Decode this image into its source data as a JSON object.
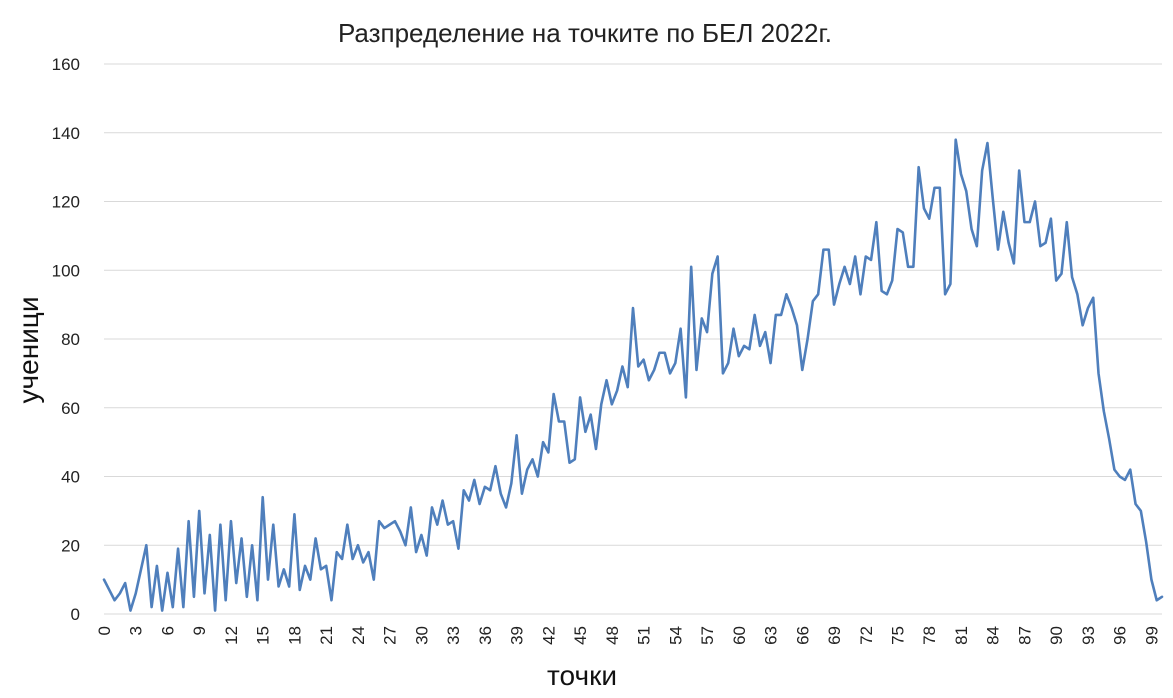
{
  "chart_data": {
    "type": "line",
    "title": "Разпределение на точките по БЕЛ 2022г.",
    "xlabel": "точки",
    "ylabel": "ученици",
    "ylim": [
      0,
      160
    ],
    "y_ticks": [
      "0",
      "20",
      "40",
      "60",
      "80",
      "100",
      "120",
      "140",
      "160"
    ],
    "x_ticks": [
      "0",
      "3",
      "6",
      "9",
      "12",
      "15",
      "18",
      "21",
      "24",
      "27",
      "30",
      "33",
      "36",
      "39",
      "42",
      "45",
      "48",
      "51",
      "54",
      "57",
      "60",
      "63",
      "66",
      "69",
      "72",
      "75",
      "78",
      "81",
      "84",
      "87",
      "90",
      "93",
      "96",
      "99"
    ],
    "x_range": [
      0,
      100
    ],
    "grid": true,
    "legend": "none",
    "color": "#4f7fbc",
    "step": 0.5,
    "series": [
      {
        "values": [
          10,
          7,
          4,
          6,
          9,
          1,
          6,
          13,
          20,
          2,
          14,
          1,
          12,
          2,
          19,
          2,
          27,
          5,
          30,
          6,
          23,
          1,
          26,
          4,
          27,
          9,
          22,
          5,
          20,
          4,
          34,
          10,
          26,
          8,
          13,
          8,
          29,
          7,
          14,
          10,
          22,
          13,
          14,
          4,
          18,
          16,
          26,
          16,
          20,
          15,
          18,
          10,
          27,
          25,
          26,
          27,
          24,
          20,
          31,
          18,
          23,
          17,
          31,
          26,
          33,
          26,
          27,
          19,
          36,
          33,
          39,
          32,
          37,
          36,
          43,
          35,
          31,
          38,
          52,
          35,
          42,
          45,
          40,
          50,
          47,
          64,
          56,
          56,
          44,
          45,
          63,
          53,
          58,
          48,
          61,
          68,
          61,
          65,
          72,
          66,
          89,
          72,
          74,
          68,
          71,
          76,
          76,
          70,
          73,
          83,
          63,
          101,
          71,
          86,
          82,
          99,
          104,
          70,
          73,
          83,
          75,
          78,
          77,
          87,
          78,
          82,
          73,
          87,
          87,
          93,
          89,
          84,
          71,
          80,
          91,
          93,
          106,
          106,
          90,
          96,
          101,
          96,
          104,
          93,
          104,
          103,
          114,
          94,
          93,
          97,
          112,
          111,
          101,
          101,
          130,
          118,
          115,
          124,
          124,
          93,
          96,
          138,
          128,
          123,
          112,
          107,
          129,
          137,
          121,
          106,
          117,
          108,
          102,
          129,
          114,
          114,
          120,
          107,
          108,
          115,
          97,
          99,
          114,
          98,
          93,
          84,
          89,
          92,
          70,
          59,
          51,
          42,
          40,
          39,
          42,
          32,
          30,
          21,
          10,
          4,
          5
        ]
      }
    ]
  }
}
